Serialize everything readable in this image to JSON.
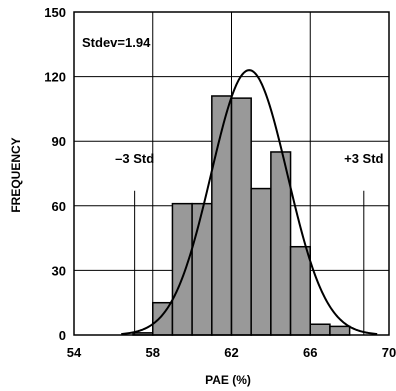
{
  "chart_data": {
    "type": "bar",
    "subtype": "histogram-with-normal-curve",
    "xlabel": "PAE (%)",
    "ylabel": "FREQUENCY",
    "xlim": [
      54,
      70
    ],
    "ylim": [
      0,
      150
    ],
    "x_ticks": [
      54,
      58,
      62,
      66,
      70
    ],
    "y_ticks": [
      0,
      30,
      60,
      90,
      120,
      150
    ],
    "grid": true,
    "bins": [
      {
        "x0": 57,
        "x1": 58,
        "value": 1
      },
      {
        "x0": 58,
        "x1": 59,
        "value": 15
      },
      {
        "x0": 59,
        "x1": 60,
        "value": 61
      },
      {
        "x0": 60,
        "x1": 61,
        "value": 61
      },
      {
        "x0": 61,
        "x1": 62,
        "value": 111
      },
      {
        "x0": 62,
        "x1": 63,
        "value": 110
      },
      {
        "x0": 63,
        "x1": 64,
        "value": 68
      },
      {
        "x0": 64,
        "x1": 65,
        "value": 85
      },
      {
        "x0": 65,
        "x1": 66,
        "value": 41
      },
      {
        "x0": 66,
        "x1": 67,
        "value": 5
      },
      {
        "x0": 67,
        "x1": 68,
        "value": 4
      }
    ],
    "normal_curve": {
      "mean": 62.9,
      "stdev": 1.94,
      "peak": 123
    },
    "annotations": {
      "stdev": "Stdev=1.94",
      "minus_std": "–3 Std",
      "plus_std": "+3 Std",
      "minus_std_x": 57.08,
      "plus_std_x": 68.72
    },
    "colors": {
      "bar_fill": "#999999",
      "bar_stroke": "#000000",
      "curve": "#000000",
      "grid": "#000000"
    }
  }
}
